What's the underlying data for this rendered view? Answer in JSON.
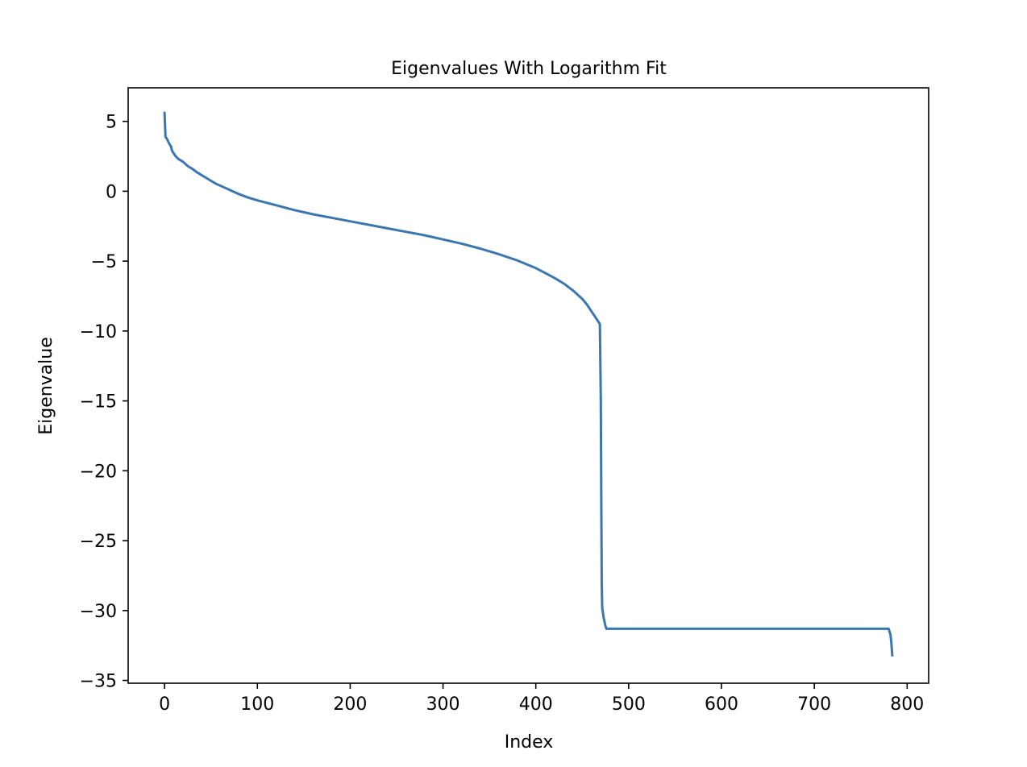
{
  "chart_data": {
    "type": "line",
    "title": "Eigenvalues With Logarithm Fit",
    "xlabel": "Index",
    "ylabel": "Eigenvalue",
    "xlim": [
      -39.2,
      823.2
    ],
    "ylim": [
      -35.2,
      7.4
    ],
    "xticks": [
      0,
      100,
      200,
      300,
      400,
      500,
      600,
      700,
      800
    ],
    "yticks": [
      5,
      0,
      -5,
      -10,
      -15,
      -20,
      -25,
      -30,
      -35
    ],
    "xtick_labels": [
      "0",
      "100",
      "200",
      "300",
      "400",
      "500",
      "600",
      "700",
      "800"
    ],
    "ytick_labels": [
      "5",
      "0",
      "−5",
      "−10",
      "−15",
      "−20",
      "−25",
      "−30",
      "−35"
    ],
    "grid": false,
    "series": [
      {
        "color": "#3a76af",
        "points": [
          [
            0,
            5.6
          ],
          [
            1,
            3.9
          ],
          [
            3,
            3.7
          ],
          [
            5,
            3.4
          ],
          [
            7,
            3.2
          ],
          [
            8,
            2.9
          ],
          [
            10,
            2.7
          ],
          [
            12,
            2.5
          ],
          [
            15,
            2.3
          ],
          [
            20,
            2.1
          ],
          [
            25,
            1.8
          ],
          [
            30,
            1.6
          ],
          [
            35,
            1.35
          ],
          [
            40,
            1.15
          ],
          [
            45,
            0.95
          ],
          [
            50,
            0.75
          ],
          [
            55,
            0.55
          ],
          [
            60,
            0.4
          ],
          [
            70,
            0.1
          ],
          [
            80,
            -0.2
          ],
          [
            90,
            -0.45
          ],
          [
            100,
            -0.65
          ],
          [
            120,
            -1.0
          ],
          [
            140,
            -1.35
          ],
          [
            160,
            -1.65
          ],
          [
            180,
            -1.9
          ],
          [
            200,
            -2.15
          ],
          [
            220,
            -2.4
          ],
          [
            240,
            -2.65
          ],
          [
            260,
            -2.9
          ],
          [
            280,
            -3.15
          ],
          [
            300,
            -3.45
          ],
          [
            320,
            -3.75
          ],
          [
            340,
            -4.1
          ],
          [
            360,
            -4.5
          ],
          [
            380,
            -4.95
          ],
          [
            400,
            -5.5
          ],
          [
            410,
            -5.85
          ],
          [
            420,
            -6.2
          ],
          [
            430,
            -6.6
          ],
          [
            440,
            -7.1
          ],
          [
            450,
            -7.7
          ],
          [
            455,
            -8.1
          ],
          [
            460,
            -8.6
          ],
          [
            465,
            -9.1
          ],
          [
            469,
            -9.5
          ],
          [
            470,
            -15.0
          ],
          [
            470.5,
            -22.0
          ],
          [
            471,
            -28.0
          ],
          [
            471.5,
            -29.8
          ],
          [
            473,
            -30.5
          ],
          [
            475,
            -31.1
          ],
          [
            476,
            -31.3
          ],
          [
            500,
            -31.3
          ],
          [
            600,
            -31.3
          ],
          [
            700,
            -31.3
          ],
          [
            780,
            -31.3
          ],
          [
            782,
            -31.7
          ],
          [
            783,
            -32.3
          ],
          [
            784,
            -33.2
          ]
        ]
      }
    ]
  }
}
